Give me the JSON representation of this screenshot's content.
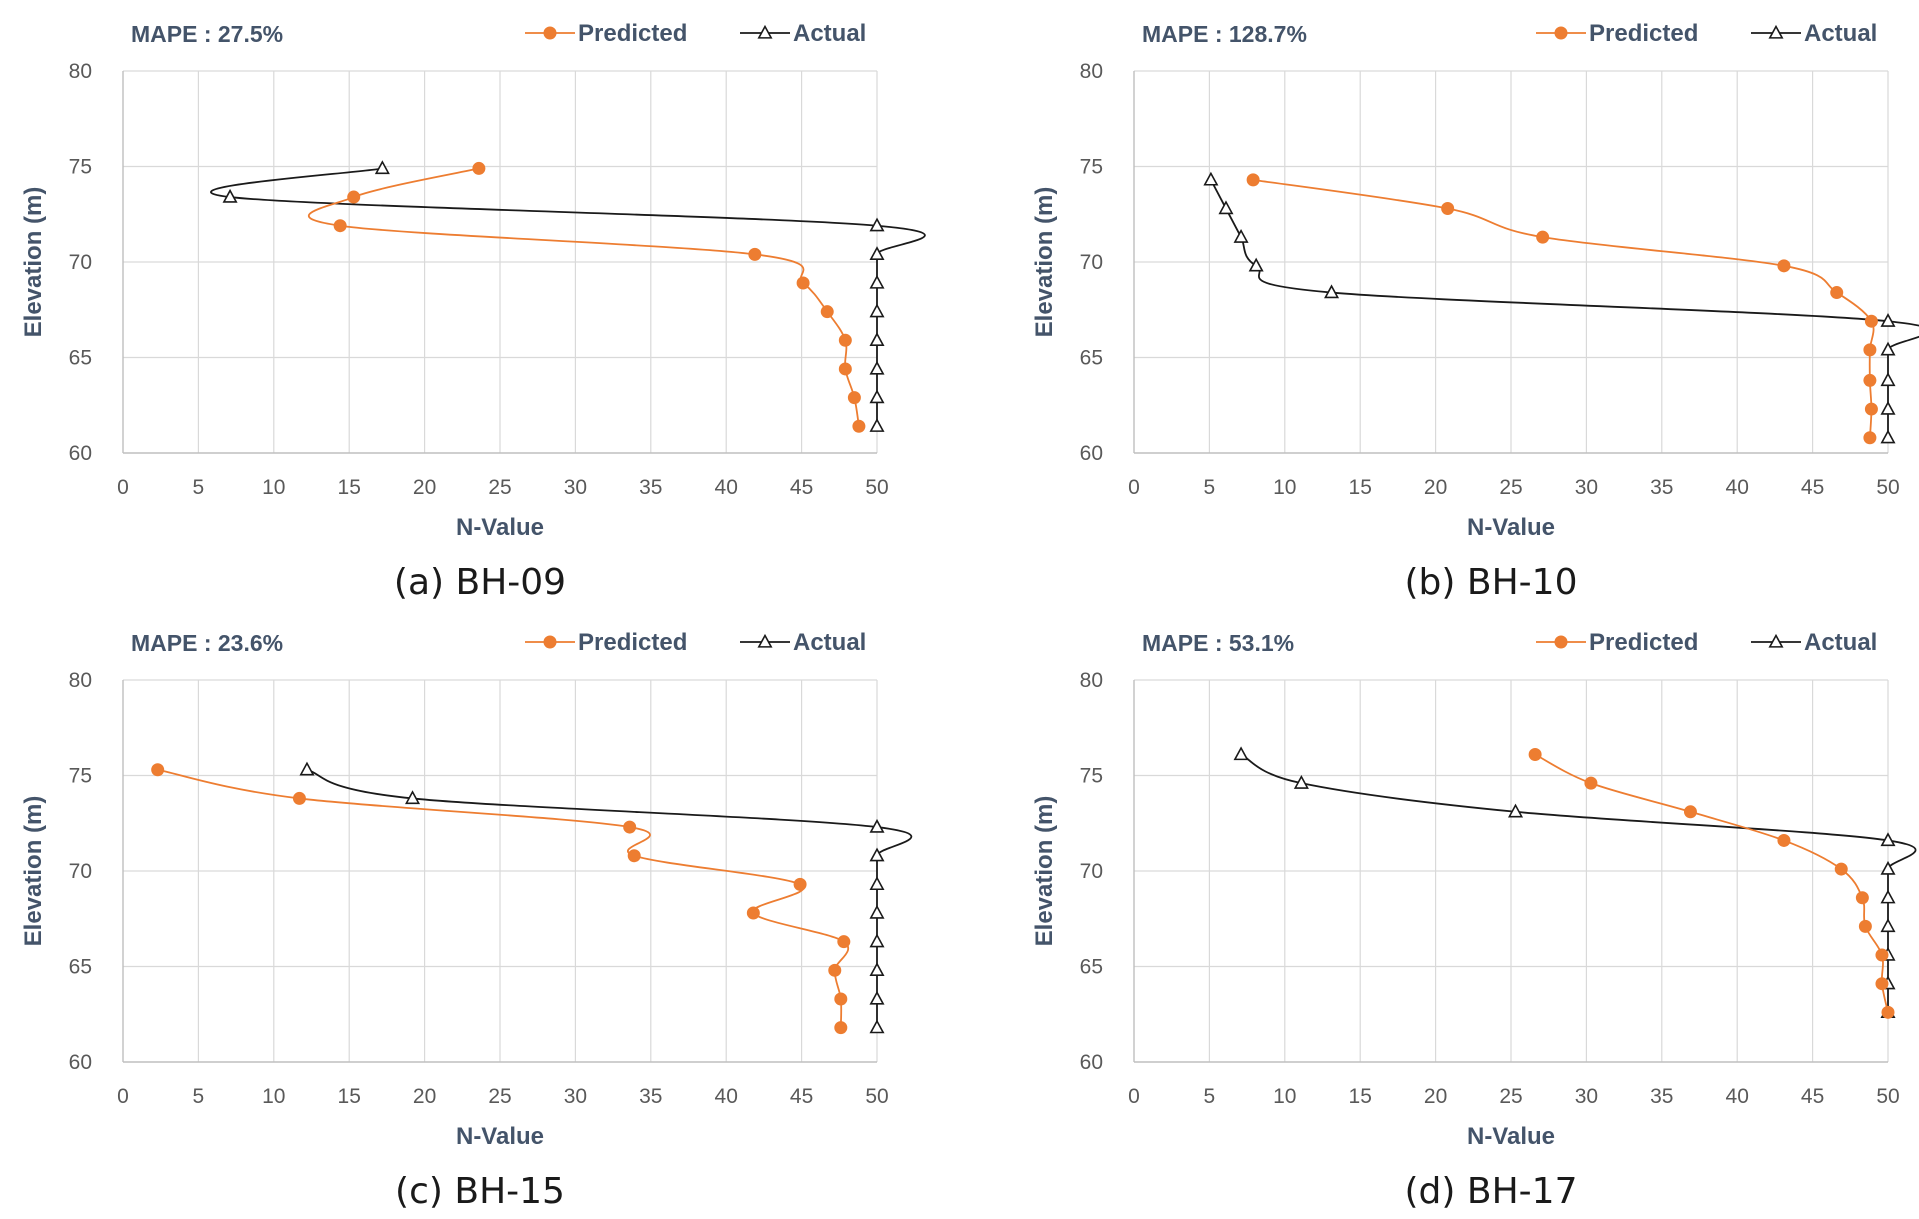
{
  "chart_data": [
    {
      "type": "line",
      "caption": "(a) BH-09",
      "metric": "MAPE : 27.5%",
      "xlabel": "N-Value",
      "ylabel": "Elevation (m)",
      "xlim": [
        0,
        50
      ],
      "ylim": [
        60,
        80
      ],
      "x_ticks": [
        "0",
        "5",
        "10",
        "15",
        "20",
        "25",
        "30",
        "35",
        "40",
        "45",
        "50"
      ],
      "y_ticks": [
        "60",
        "65",
        "70",
        "75",
        "80"
      ],
      "legend": [
        "Predicted",
        "Actual"
      ],
      "series": [
        {
          "name": "Predicted",
          "color": "#ed7d31",
          "marker": "circle",
          "points": [
            [
              23.6,
              74.9
            ],
            [
              15.3,
              73.4
            ],
            [
              14.4,
              71.9
            ],
            [
              41.9,
              70.4
            ],
            [
              45.1,
              68.9
            ],
            [
              46.7,
              67.4
            ],
            [
              47.9,
              65.9
            ],
            [
              47.9,
              64.4
            ],
            [
              48.5,
              62.9
            ],
            [
              48.8,
              61.4
            ]
          ]
        },
        {
          "name": "Actual",
          "color": "#1a1a1a",
          "marker": "triangle",
          "points": [
            [
              17.2,
              74.9
            ],
            [
              7.1,
              73.4
            ],
            [
              50,
              71.9
            ],
            [
              50,
              70.4
            ],
            [
              50,
              68.9
            ],
            [
              50,
              67.4
            ],
            [
              50,
              65.9
            ],
            [
              50,
              64.4
            ],
            [
              50,
              62.9
            ],
            [
              50,
              61.4
            ]
          ]
        }
      ]
    },
    {
      "type": "line",
      "caption": "(b) BH-10",
      "metric": "MAPE : 128.7%",
      "xlabel": "N-Value",
      "ylabel": "Elevation (m)",
      "xlim": [
        0,
        50
      ],
      "ylim": [
        60,
        80
      ],
      "x_ticks": [
        "0",
        "5",
        "10",
        "15",
        "20",
        "25",
        "30",
        "35",
        "40",
        "45",
        "50"
      ],
      "y_ticks": [
        "60",
        "65",
        "70",
        "75",
        "80"
      ],
      "legend": [
        "Predicted",
        "Actual"
      ],
      "series": [
        {
          "name": "Predicted",
          "color": "#ed7d31",
          "marker": "circle",
          "points": [
            [
              7.9,
              74.3
            ],
            [
              20.8,
              72.8
            ],
            [
              27.1,
              71.3
            ],
            [
              43.1,
              69.8
            ],
            [
              46.6,
              68.4
            ],
            [
              48.9,
              66.9
            ],
            [
              48.8,
              65.4
            ],
            [
              48.8,
              63.8
            ],
            [
              48.9,
              62.3
            ],
            [
              48.8,
              60.8
            ]
          ]
        },
        {
          "name": "Actual",
          "color": "#1a1a1a",
          "marker": "triangle",
          "points": [
            [
              5.1,
              74.3
            ],
            [
              6.1,
              72.8
            ],
            [
              7.1,
              71.3
            ],
            [
              8.1,
              69.8
            ],
            [
              13.1,
              68.4
            ],
            [
              50,
              66.9
            ],
            [
              50,
              65.4
            ],
            [
              50,
              63.8
            ],
            [
              50,
              62.3
            ],
            [
              50,
              60.8
            ]
          ]
        }
      ]
    },
    {
      "type": "line",
      "caption": "(c) BH-15",
      "metric": "MAPE : 23.6%",
      "xlabel": "N-Value",
      "ylabel": "Elevation (m)",
      "xlim": [
        0,
        50
      ],
      "ylim": [
        60,
        80
      ],
      "x_ticks": [
        "0",
        "5",
        "10",
        "15",
        "20",
        "25",
        "30",
        "35",
        "40",
        "45",
        "50"
      ],
      "y_ticks": [
        "60",
        "65",
        "70",
        "75",
        "80"
      ],
      "legend": [
        "Predicted",
        "Actual"
      ],
      "series": [
        {
          "name": "Predicted",
          "color": "#ed7d31",
          "marker": "circle",
          "points": [
            [
              2.3,
              75.3
            ],
            [
              11.7,
              73.8
            ],
            [
              33.6,
              72.3
            ],
            [
              33.9,
              70.8
            ],
            [
              44.9,
              69.3
            ],
            [
              41.8,
              67.8
            ],
            [
              47.8,
              66.3
            ],
            [
              47.2,
              64.8
            ],
            [
              47.6,
              63.3
            ],
            [
              47.6,
              61.8
            ]
          ]
        },
        {
          "name": "Actual",
          "color": "#1a1a1a",
          "marker": "triangle",
          "points": [
            [
              12.2,
              75.3
            ],
            [
              19.2,
              73.8
            ],
            [
              50,
              72.3
            ],
            [
              50,
              70.8
            ],
            [
              50,
              69.3
            ],
            [
              50,
              67.8
            ],
            [
              50,
              66.3
            ],
            [
              50,
              64.8
            ],
            [
              50,
              63.3
            ],
            [
              50,
              61.8
            ]
          ]
        }
      ]
    },
    {
      "type": "line",
      "caption": "(d) BH-17",
      "metric": "MAPE : 53.1%",
      "xlabel": "N-Value",
      "ylabel": "Elevation (m)",
      "xlim": [
        0,
        50
      ],
      "ylim": [
        60,
        80
      ],
      "x_ticks": [
        "0",
        "5",
        "10",
        "15",
        "20",
        "25",
        "30",
        "35",
        "40",
        "45",
        "50"
      ],
      "y_ticks": [
        "60",
        "65",
        "70",
        "75",
        "80"
      ],
      "legend": [
        "Predicted",
        "Actual"
      ],
      "series": [
        {
          "name": "Predicted",
          "color": "#ed7d31",
          "marker": "circle",
          "points": [
            [
              26.6,
              76.1
            ],
            [
              30.3,
              74.6
            ],
            [
              36.9,
              73.1
            ],
            [
              43.1,
              71.6
            ],
            [
              46.9,
              70.1
            ],
            [
              48.3,
              68.6
            ],
            [
              48.5,
              67.1
            ],
            [
              49.6,
              65.6
            ],
            [
              49.6,
              64.1
            ],
            [
              50,
              62.6
            ]
          ]
        },
        {
          "name": "Actual",
          "color": "#1a1a1a",
          "marker": "triangle",
          "points": [
            [
              7.1,
              76.1
            ],
            [
              11.1,
              74.6
            ],
            [
              25.3,
              73.1
            ],
            [
              50,
              71.6
            ],
            [
              50,
              70.1
            ],
            [
              50,
              68.6
            ],
            [
              50,
              67.1
            ],
            [
              50,
              65.6
            ],
            [
              50,
              64.1
            ],
            [
              50,
              62.6
            ]
          ]
        }
      ]
    }
  ]
}
